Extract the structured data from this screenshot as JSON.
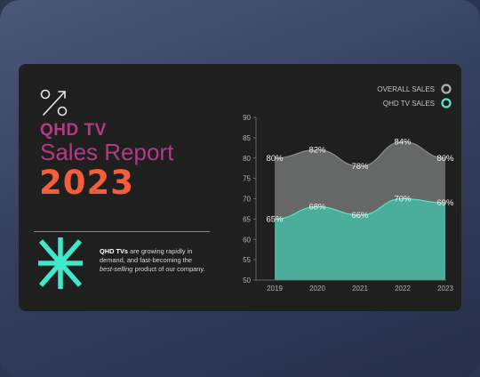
{
  "header": {
    "product": "QHD TV",
    "report": "Sales Report",
    "year": "2023"
  },
  "description": {
    "lead": "QHD TVs",
    "text1": " are growing rapidly in demand, and fast-becoming the ",
    "emphasis": "best-selling",
    "text2": " product of our company."
  },
  "colors": {
    "background": "#1f1f20",
    "accent_magenta": "#b43a86",
    "accent_orange": "#f45f3a",
    "overall_series": "#656866",
    "qhd_series": "#4aae9b",
    "qhd_line": "#5fe3c8",
    "star_icon": "#3fe8c9"
  },
  "icons": [
    "percent-icon",
    "asterisk-star-icon"
  ],
  "chart_data": {
    "type": "area",
    "x": [
      "2019",
      "2020",
      "2021",
      "2022",
      "2023"
    ],
    "ylim": [
      50,
      90
    ],
    "yticks": [
      50,
      55,
      60,
      65,
      70,
      75,
      80,
      85,
      90
    ],
    "grid": false,
    "legend_position": "top-right",
    "series": [
      {
        "name": "OVERALL SALES",
        "values": [
          80,
          82,
          78,
          84,
          80
        ],
        "labels": [
          "80%",
          "82%",
          "78%",
          "84%",
          "80%"
        ],
        "color": "#656866",
        "line_color": "#8c8e8c"
      },
      {
        "name": "QHD TV SALES",
        "values": [
          65,
          68,
          66,
          70,
          69
        ],
        "labels": [
          "65%",
          "68%",
          "66%",
          "70%",
          "69%"
        ],
        "color": "#4aae9b",
        "line_color": "#5fe3c8"
      }
    ]
  }
}
